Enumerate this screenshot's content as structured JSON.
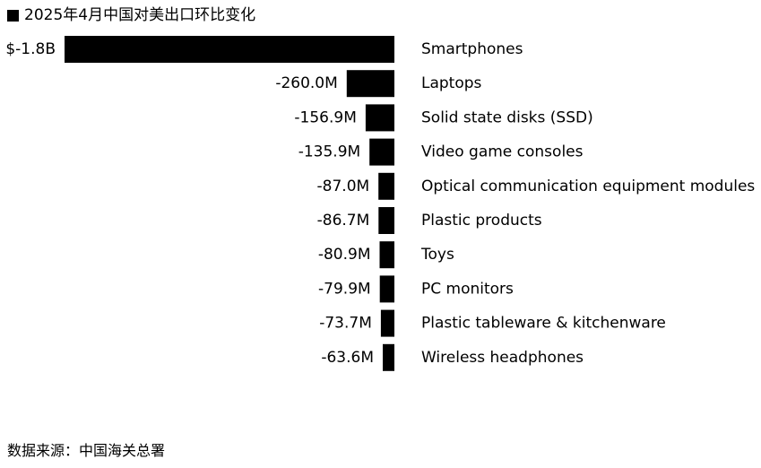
{
  "legend": {
    "label": "2025年4月中国对美出口环比变化"
  },
  "source": "数据来源：中国海关总署",
  "chart_data": {
    "type": "bar",
    "orientation": "horizontal",
    "unit": "USD",
    "categories": [
      "Smartphones",
      "Laptops",
      "Solid state disks (SSD)",
      "Video game consoles",
      "Optical communication equipment modules",
      "Plastic products",
      "Toys",
      "PC monitors",
      "Plastic tableware & kitchenware",
      "Wireless headphones"
    ],
    "values": [
      -1800000000,
      -260000000,
      -156900000,
      -135900000,
      -87000000,
      -86700000,
      -80900000,
      -79900000,
      -73700000,
      -63600000
    ],
    "data_labels": [
      "$-1.8B",
      "-260.0M",
      "-156.9M",
      "-135.9M",
      "-87.0M",
      "-86.7M",
      "-80.9M",
      "-79.9M",
      "-73.7M",
      "-63.6M"
    ],
    "series": [
      {
        "name": "2025年4月中国对美出口环比变化",
        "color": "#000000"
      }
    ],
    "grid": false,
    "legend_position": "top-left",
    "bar_color": "#000000"
  }
}
